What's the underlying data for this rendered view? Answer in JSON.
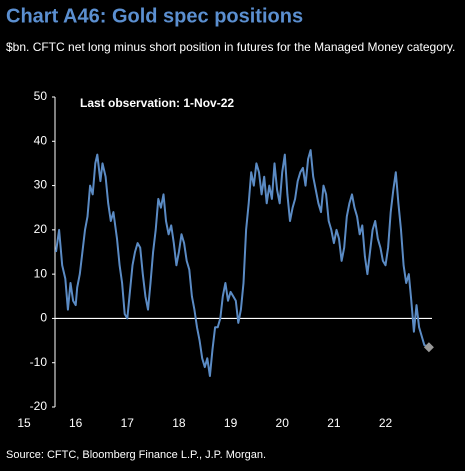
{
  "chart_data": {
    "type": "line",
    "title": "Chart A46: Gold spec positions",
    "subtitle": "$bn. CFTC net long minus short position in futures for the Managed Money category.",
    "annotation": "Last observation:  1-Nov-22",
    "source": "Source: CFTC, Bloomberg Finance L.P., J.P. Morgan.",
    "color": "#5b8bc4",
    "marker_color": "#999999",
    "x": [
      15.62,
      15.68,
      15.74,
      15.8,
      15.85,
      15.9,
      15.95,
      16.0,
      16.03,
      16.08,
      16.12,
      16.18,
      16.23,
      16.28,
      16.33,
      16.38,
      16.42,
      16.48,
      16.52,
      16.58,
      16.63,
      16.68,
      16.73,
      16.8,
      16.85,
      16.9,
      16.95,
      17.0,
      17.05,
      17.1,
      17.15,
      17.2,
      17.25,
      17.3,
      17.35,
      17.4,
      17.45,
      17.5,
      17.55,
      17.6,
      17.65,
      17.7,
      17.75,
      17.8,
      17.85,
      17.9,
      17.95,
      18.0,
      18.05,
      18.1,
      18.15,
      18.2,
      18.25,
      18.3,
      18.35,
      18.4,
      18.45,
      18.5,
      18.55,
      18.6,
      18.65,
      18.7,
      18.75,
      18.8,
      18.85,
      18.9,
      18.95,
      19.0,
      19.05,
      19.1,
      19.15,
      19.2,
      19.25,
      19.3,
      19.35,
      19.4,
      19.45,
      19.5,
      19.55,
      19.6,
      19.65,
      19.7,
      19.75,
      19.8,
      19.85,
      19.9,
      19.95,
      20.0,
      20.05,
      20.1,
      20.15,
      20.2,
      20.25,
      20.3,
      20.35,
      20.4,
      20.45,
      20.5,
      20.55,
      20.6,
      20.65,
      20.7,
      20.75,
      20.8,
      20.85,
      20.9,
      20.95,
      21.0,
      21.05,
      21.1,
      21.15,
      21.2,
      21.25,
      21.3,
      21.35,
      21.4,
      21.45,
      21.5,
      21.55,
      21.6,
      21.65,
      21.7,
      21.75,
      21.8,
      21.85,
      21.9,
      21.95,
      22.0,
      22.05,
      22.1,
      22.15,
      22.2,
      22.25,
      22.3,
      22.35,
      22.4,
      22.45,
      22.5,
      22.55,
      22.6,
      22.65,
      22.7,
      22.75,
      22.84
    ],
    "values": [
      15,
      20,
      12,
      9,
      2,
      8,
      4,
      3,
      7,
      10,
      14,
      20,
      23,
      30,
      28,
      35,
      37,
      31,
      35,
      32,
      26,
      22,
      24,
      18,
      12,
      8,
      1,
      0,
      6,
      12,
      15,
      17,
      16,
      10,
      5,
      2,
      8,
      15,
      20,
      27,
      25,
      28,
      22,
      19,
      21,
      17,
      12,
      15,
      19,
      17,
      13,
      11,
      5,
      2,
      -2,
      -5,
      -9,
      -11,
      -9,
      -13,
      -7,
      -2,
      -2,
      0,
      5,
      8,
      4,
      6,
      5,
      4,
      -1,
      2,
      8,
      20,
      26,
      33,
      30,
      35,
      33,
      28,
      32,
      26,
      30,
      27,
      35,
      29,
      26,
      33,
      37,
      28,
      22,
      25,
      27,
      31,
      33,
      34,
      30,
      36,
      38,
      32,
      29,
      26,
      24,
      30,
      28,
      22,
      20,
      17,
      20,
      18,
      13,
      16,
      23,
      26,
      28,
      25,
      23,
      19,
      21,
      14,
      10,
      15,
      20,
      22,
      18,
      16,
      13,
      12,
      16,
      24,
      29,
      33,
      26,
      20,
      12,
      8,
      10,
      4,
      -3,
      3,
      -2,
      -4,
      -6,
      -6.5
    ],
    "xlim": [
      15.6,
      22.9
    ],
    "xticks": [
      15,
      16,
      17,
      18,
      19,
      20,
      21,
      22
    ],
    "ylim": [
      -20,
      50
    ],
    "yticks": [
      -20,
      -10,
      0,
      10,
      20,
      30,
      40,
      50
    ]
  }
}
